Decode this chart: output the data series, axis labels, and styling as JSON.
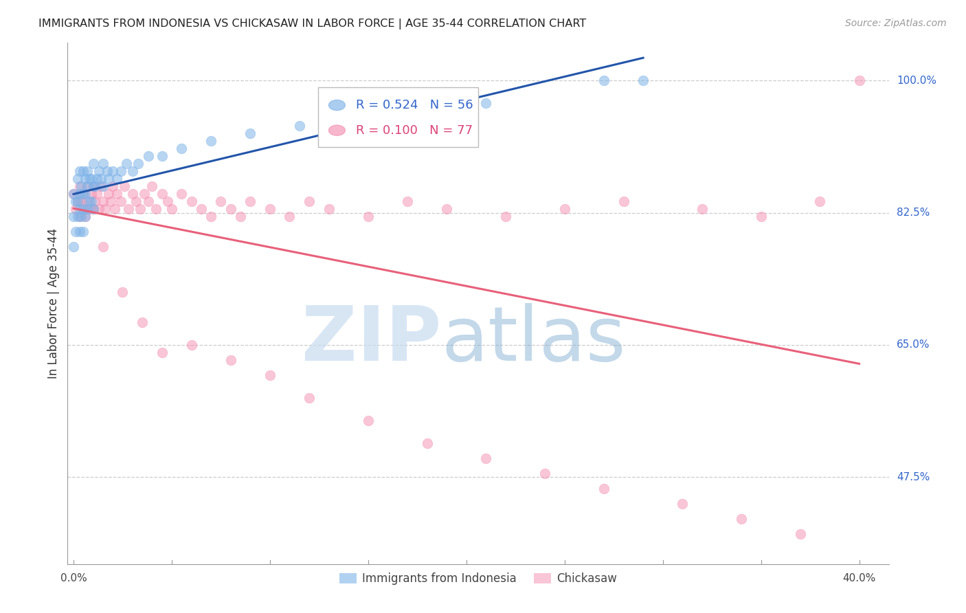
{
  "title": "IMMIGRANTS FROM INDONESIA VS CHICKASAW IN LABOR FORCE | AGE 35-44 CORRELATION CHART",
  "source_text": "Source: ZipAtlas.com",
  "ylabel": "In Labor Force | Age 35-44",
  "ytick_labels": [
    "100.0%",
    "82.5%",
    "65.0%",
    "47.5%"
  ],
  "ytick_values": [
    1.0,
    0.825,
    0.65,
    0.475
  ],
  "ymin": 0.36,
  "ymax": 1.05,
  "xmin": -0.003,
  "xmax": 0.415,
  "r_indonesia": 0.524,
  "n_indonesia": 56,
  "r_chickasaw": 0.1,
  "n_chickasaw": 77,
  "blue_color": "#7EB3E8",
  "pink_color": "#F48FB1",
  "line_blue_color": "#2255AA",
  "line_pink_color": "#E8607A",
  "legend_label_indonesia": "Immigrants from Indonesia",
  "legend_label_chickasaw": "Chickasaw",
  "indo_x": [
    0.0,
    0.0,
    0.0,
    0.001,
    0.001,
    0.002,
    0.002,
    0.002,
    0.003,
    0.003,
    0.003,
    0.003,
    0.004,
    0.004,
    0.005,
    0.005,
    0.005,
    0.005,
    0.006,
    0.006,
    0.006,
    0.007,
    0.007,
    0.007,
    0.008,
    0.008,
    0.009,
    0.009,
    0.01,
    0.01,
    0.01,
    0.011,
    0.012,
    0.013,
    0.014,
    0.015,
    0.015,
    0.017,
    0.018,
    0.02,
    0.022,
    0.024,
    0.027,
    0.03,
    0.033,
    0.038,
    0.045,
    0.055,
    0.07,
    0.09,
    0.115,
    0.14,
    0.17,
    0.21,
    0.27,
    0.29
  ],
  "indo_y": [
    0.78,
    0.82,
    0.85,
    0.8,
    0.84,
    0.82,
    0.84,
    0.87,
    0.8,
    0.83,
    0.85,
    0.88,
    0.82,
    0.86,
    0.8,
    0.83,
    0.85,
    0.88,
    0.82,
    0.85,
    0.87,
    0.83,
    0.86,
    0.88,
    0.84,
    0.87,
    0.84,
    0.87,
    0.83,
    0.86,
    0.89,
    0.86,
    0.87,
    0.88,
    0.87,
    0.86,
    0.89,
    0.88,
    0.87,
    0.88,
    0.87,
    0.88,
    0.89,
    0.88,
    0.89,
    0.9,
    0.9,
    0.91,
    0.92,
    0.93,
    0.94,
    0.95,
    0.96,
    0.97,
    1.0,
    1.0
  ],
  "chick_x": [
    0.0,
    0.001,
    0.002,
    0.003,
    0.003,
    0.004,
    0.005,
    0.005,
    0.006,
    0.007,
    0.007,
    0.008,
    0.009,
    0.01,
    0.01,
    0.011,
    0.012,
    0.013,
    0.014,
    0.015,
    0.016,
    0.018,
    0.019,
    0.02,
    0.021,
    0.022,
    0.024,
    0.026,
    0.028,
    0.03,
    0.032,
    0.034,
    0.036,
    0.038,
    0.04,
    0.042,
    0.045,
    0.048,
    0.05,
    0.055,
    0.06,
    0.065,
    0.07,
    0.075,
    0.08,
    0.085,
    0.09,
    0.1,
    0.11,
    0.12,
    0.13,
    0.15,
    0.17,
    0.19,
    0.22,
    0.25,
    0.28,
    0.32,
    0.35,
    0.38,
    0.015,
    0.025,
    0.035,
    0.045,
    0.06,
    0.08,
    0.1,
    0.12,
    0.15,
    0.18,
    0.21,
    0.24,
    0.27,
    0.31,
    0.34,
    0.37,
    0.4
  ],
  "chick_y": [
    0.85,
    0.83,
    0.84,
    0.82,
    0.86,
    0.84,
    0.83,
    0.85,
    0.82,
    0.84,
    0.86,
    0.83,
    0.85,
    0.83,
    0.86,
    0.84,
    0.85,
    0.83,
    0.86,
    0.84,
    0.83,
    0.85,
    0.84,
    0.86,
    0.83,
    0.85,
    0.84,
    0.86,
    0.83,
    0.85,
    0.84,
    0.83,
    0.85,
    0.84,
    0.86,
    0.83,
    0.85,
    0.84,
    0.83,
    0.85,
    0.84,
    0.83,
    0.82,
    0.84,
    0.83,
    0.82,
    0.84,
    0.83,
    0.82,
    0.84,
    0.83,
    0.82,
    0.84,
    0.83,
    0.82,
    0.83,
    0.84,
    0.83,
    0.82,
    0.84,
    0.78,
    0.72,
    0.68,
    0.64,
    0.65,
    0.63,
    0.61,
    0.58,
    0.55,
    0.52,
    0.5,
    0.48,
    0.46,
    0.44,
    0.42,
    0.4,
    1.0
  ]
}
